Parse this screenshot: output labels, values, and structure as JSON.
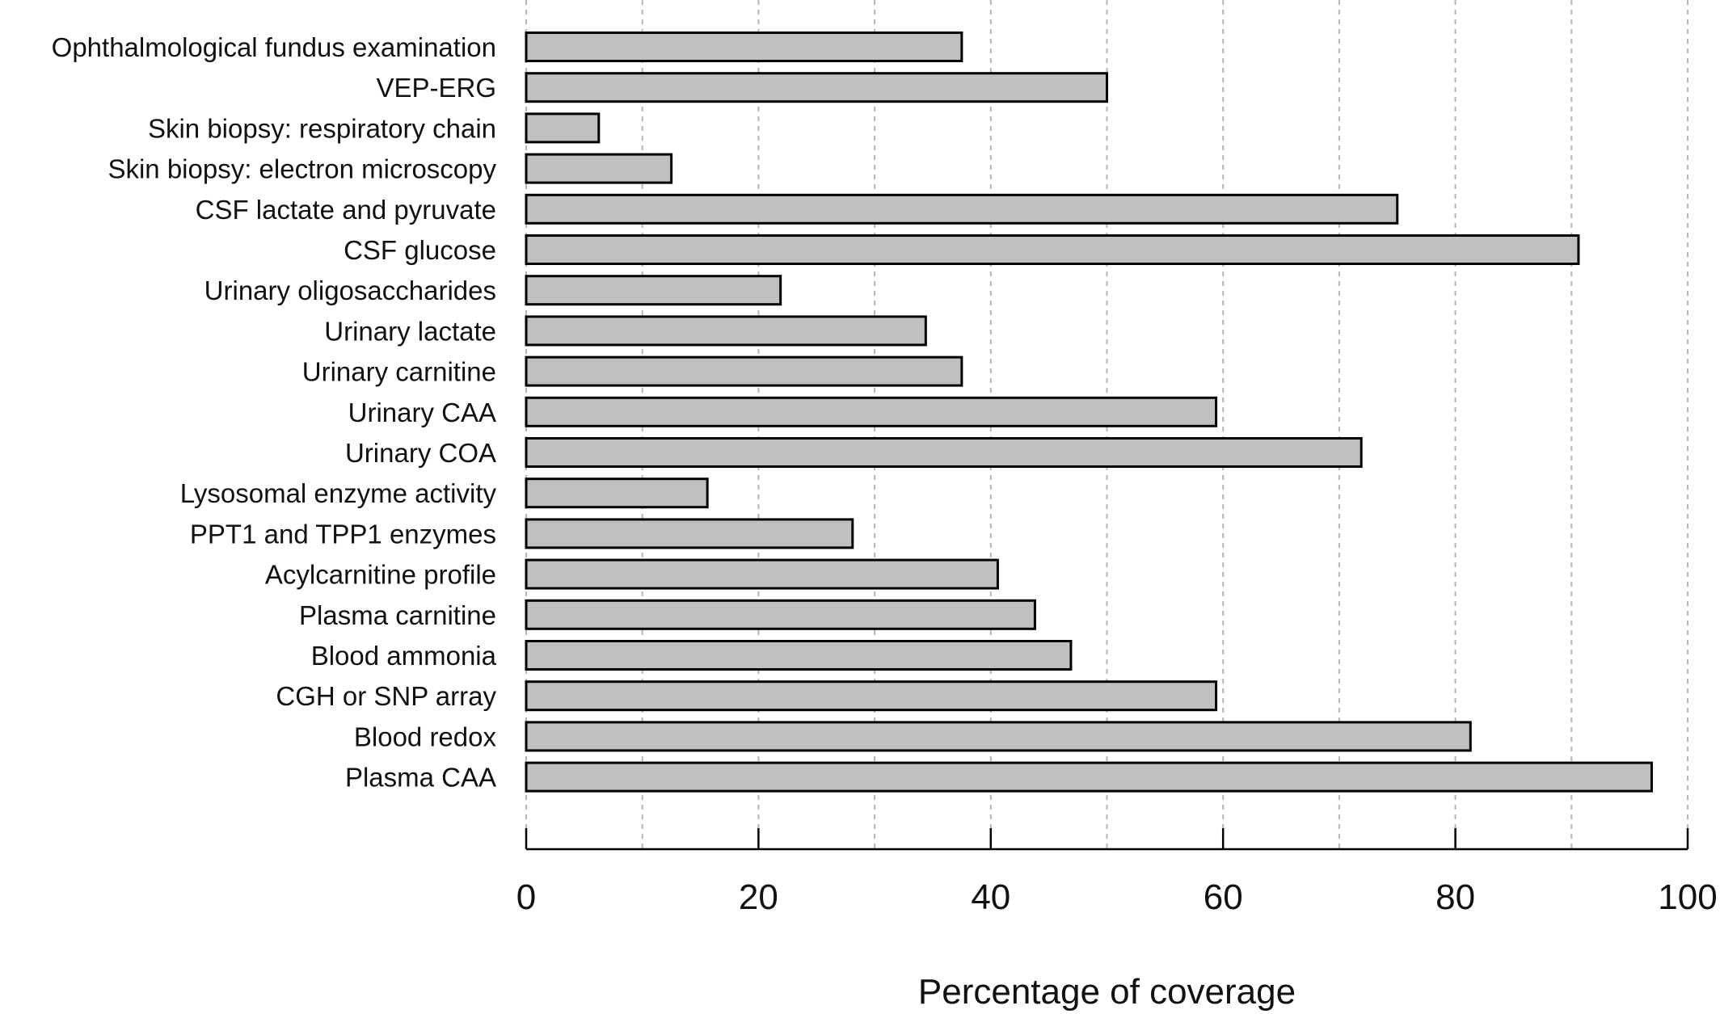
{
  "chart_data": {
    "type": "bar",
    "orientation": "horizontal",
    "categories": [
      "Ophthalmological fundus examination",
      "VEP-ERG",
      "Skin biopsy: respiratory chain",
      "Skin biopsy: electron microscopy",
      "CSF lactate and pyruvate",
      "CSF glucose",
      "Urinary oligosaccharides",
      "Urinary lactate",
      "Urinary carnitine",
      "Urinary CAA",
      "Urinary COA",
      "Lysosomal enzyme activity",
      "PPT1 and TPP1 enzymes",
      "Acylcarnitine profile",
      "Plasma carnitine",
      "Blood ammonia",
      "CGH or SNP array",
      "Blood redox",
      "Plasma CAA"
    ],
    "values": [
      37.5,
      50,
      6.25,
      12.5,
      75,
      90.6,
      21.9,
      34.4,
      37.5,
      59.4,
      71.9,
      15.6,
      28.1,
      40.6,
      43.8,
      46.9,
      59.4,
      81.3,
      96.9
    ],
    "xlabel": "Percentage of coverage",
    "ylabel": "",
    "xlim": [
      0,
      100
    ],
    "major_ticks": [
      0,
      20,
      40,
      60,
      80,
      100
    ],
    "gridlines": [
      0,
      10,
      20,
      30,
      40,
      50,
      60,
      70,
      80,
      90,
      100
    ],
    "grid": "vertical dashed every 10",
    "bar_color": "#c0c0c0",
    "bar_edge_color": "#000000",
    "legend": "none"
  }
}
